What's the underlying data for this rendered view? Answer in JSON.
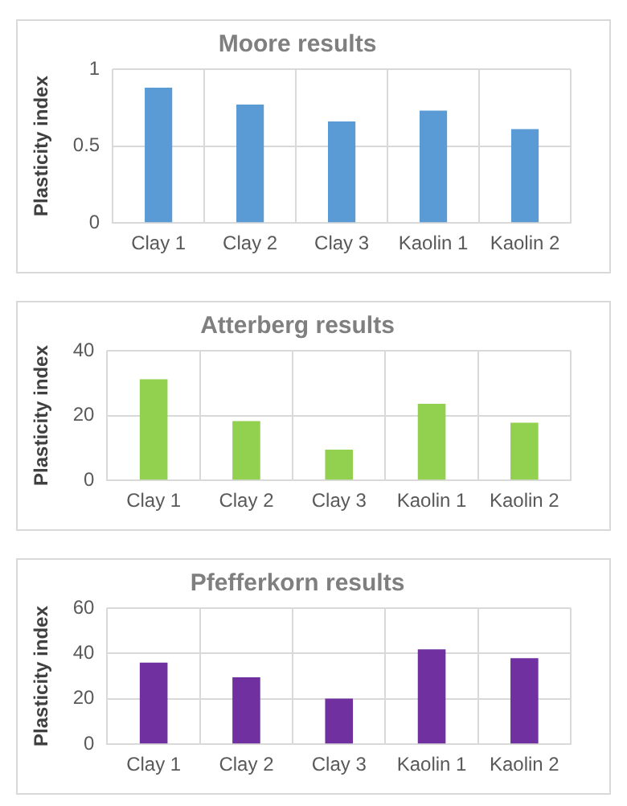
{
  "chart_data": [
    {
      "type": "bar",
      "title": "Moore results",
      "ylabel": "Plasticity index",
      "categories": [
        "Clay 1",
        "Clay 2",
        "Clay 3",
        "Kaolin 1",
        "Kaolin 2"
      ],
      "values": [
        0.88,
        0.77,
        0.66,
        0.73,
        0.61
      ],
      "color": "#5b9bd5",
      "ylim": [
        0,
        1
      ],
      "yticks": [
        0,
        0.5,
        1
      ],
      "grid": true
    },
    {
      "type": "bar",
      "title": "Atterberg results",
      "ylabel": "Plasticity index",
      "categories": [
        "Clay 1",
        "Clay 2",
        "Clay 3",
        "Kaolin 1",
        "Kaolin 2"
      ],
      "values": [
        31.2,
        18.3,
        9.5,
        23.6,
        17.8
      ],
      "color": "#92d050",
      "ylim": [
        0,
        40
      ],
      "yticks": [
        0,
        20,
        40
      ],
      "grid": true
    },
    {
      "type": "bar",
      "title": "Pfefferkorn results",
      "ylabel": "Plasticity index",
      "categories": [
        "Clay 1",
        "Clay 2",
        "Clay 3",
        "Kaolin 1",
        "Kaolin 2"
      ],
      "values": [
        36,
        29.5,
        20.1,
        41.8,
        37.9
      ],
      "color": "#7030a0",
      "ylim": [
        0,
        60
      ],
      "yticks": [
        0,
        20,
        40,
        60
      ],
      "grid": true
    }
  ]
}
